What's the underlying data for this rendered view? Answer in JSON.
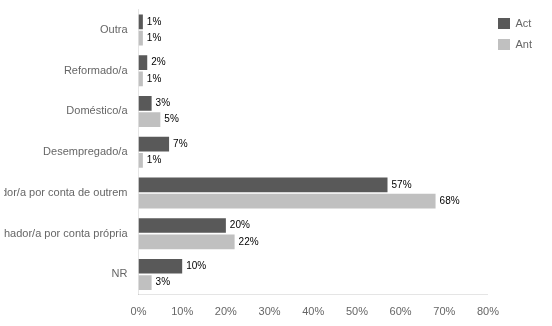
{
  "chart_data": {
    "type": "bar",
    "orientation": "horizontal",
    "categories": [
      "NR",
      "Trabalhador/a por conta própria",
      "Trabalhador/a por conta de outrem",
      "Desempregado/a",
      "Doméstico/a",
      "Reformado/a",
      "Outra"
    ],
    "series": [
      {
        "name": "Act",
        "color": "#595959",
        "values": [
          10,
          20,
          57,
          7,
          3,
          2,
          1
        ],
        "value_labels": [
          "10%",
          "20%",
          "57%",
          "7%",
          "3%",
          "2%",
          "1%"
        ]
      },
      {
        "name": "Ant",
        "color": "#c0c0c0",
        "values": [
          3,
          22,
          68,
          1,
          5,
          1,
          1
        ],
        "value_labels": [
          "3%",
          "22%",
          "68%",
          "1%",
          "5%",
          "1%",
          "1%"
        ]
      }
    ],
    "xlim": [
      0,
      80
    ],
    "xticks": [
      {
        "value": 0,
        "label": "0%"
      },
      {
        "value": 10,
        "label": "10%"
      },
      {
        "value": 20,
        "label": "20%"
      },
      {
        "value": 30,
        "label": "30%"
      },
      {
        "value": 40,
        "label": "40%"
      },
      {
        "value": 50,
        "label": "50%"
      },
      {
        "value": 60,
        "label": "60%"
      },
      {
        "value": 70,
        "label": "70%"
      },
      {
        "value": 80,
        "label": "80%"
      }
    ],
    "data_labels": true,
    "legend": "upper right",
    "grid": false
  }
}
